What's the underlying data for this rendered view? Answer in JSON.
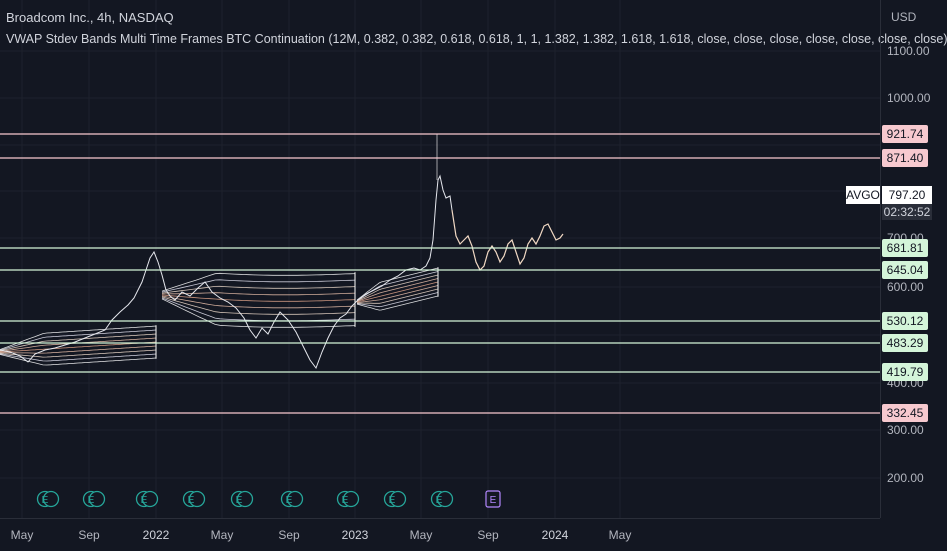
{
  "header": {
    "title": "Broadcom Inc., 4h, NASDAQ",
    "indicator": "VWAP Stdev Bands Multi Time Frames BTC Continuation (12M, 0.382, 0.382, 0.618, 0.618, 1, 1, 1.382, 1.382, 1.618, 1.618, close, close, close, close, close, close, close)"
  },
  "price_scale": {
    "currency": "USD",
    "ticks": [
      "1100.00",
      "1000.00",
      "700.00",
      "600.00",
      "400.00",
      "300.00",
      "200.00"
    ]
  },
  "symbol": {
    "ticker": "AVGO",
    "last_price": "797.20",
    "countdown": "02:32:52"
  },
  "levels": [
    {
      "label": "921.74",
      "kind": "resistance"
    },
    {
      "label": "871.40",
      "kind": "resistance"
    },
    {
      "label": "681.81",
      "kind": "support"
    },
    {
      "label": "645.04",
      "kind": "support"
    },
    {
      "label": "530.12",
      "kind": "support"
    },
    {
      "label": "483.29",
      "kind": "support"
    },
    {
      "label": "419.79",
      "kind": "support"
    },
    {
      "label": "332.45",
      "kind": "resistance"
    }
  ],
  "time_scale": {
    "ticks": [
      "May",
      "Sep",
      "2022",
      "May",
      "Sep",
      "2023",
      "May",
      "Sep",
      "2024",
      "May"
    ]
  },
  "events": [
    "E",
    "E",
    "E",
    "E",
    "E",
    "E",
    "E",
    "E",
    "E",
    "E"
  ],
  "colors": {
    "background": "#131722",
    "resistance_line": "#f7c9cf",
    "support_line": "#d4f5d9",
    "resistance_label": "#f7c9cf",
    "support_label": "#d4f5d9",
    "price_line": "#e6e8ee",
    "projection_line": "#f1d9c4",
    "earnings_icon": "#26a69a",
    "upcoming_earnings_icon": "#b388ff"
  }
}
